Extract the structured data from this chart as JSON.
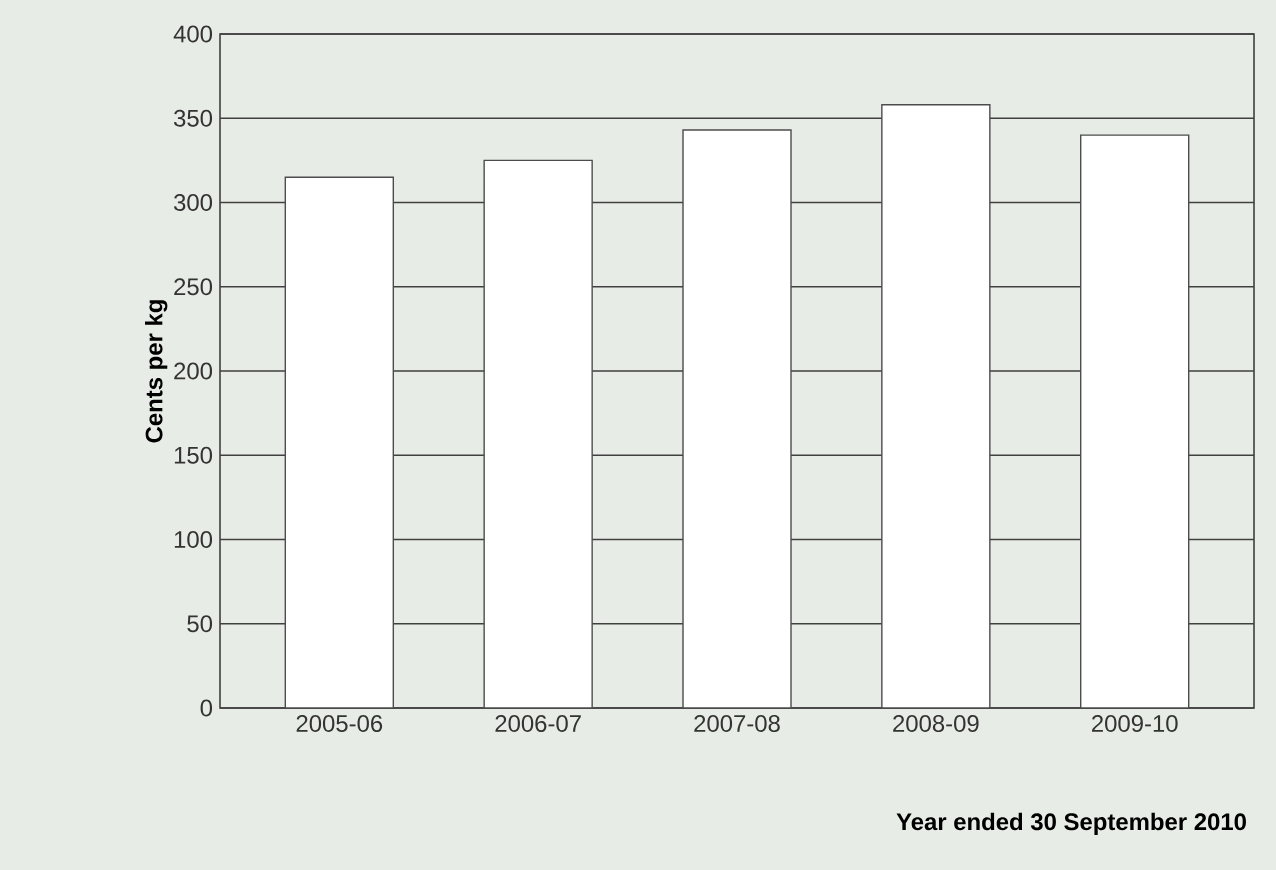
{
  "chart_data": {
    "type": "bar",
    "xlabel": "Year ended 30 September 2010",
    "ylabel": "Cents per kg",
    "categories": [
      "2005-06",
      "2006-07",
      "2007-08",
      "2008-09",
      "2009-10"
    ],
    "values": [
      315,
      325,
      343,
      358,
      340
    ],
    "color": "#ffffff",
    "ylim": [
      0,
      400
    ],
    "yticks": [
      0,
      50,
      100,
      150,
      200,
      250,
      300,
      350,
      400
    ],
    "grid": "y"
  }
}
